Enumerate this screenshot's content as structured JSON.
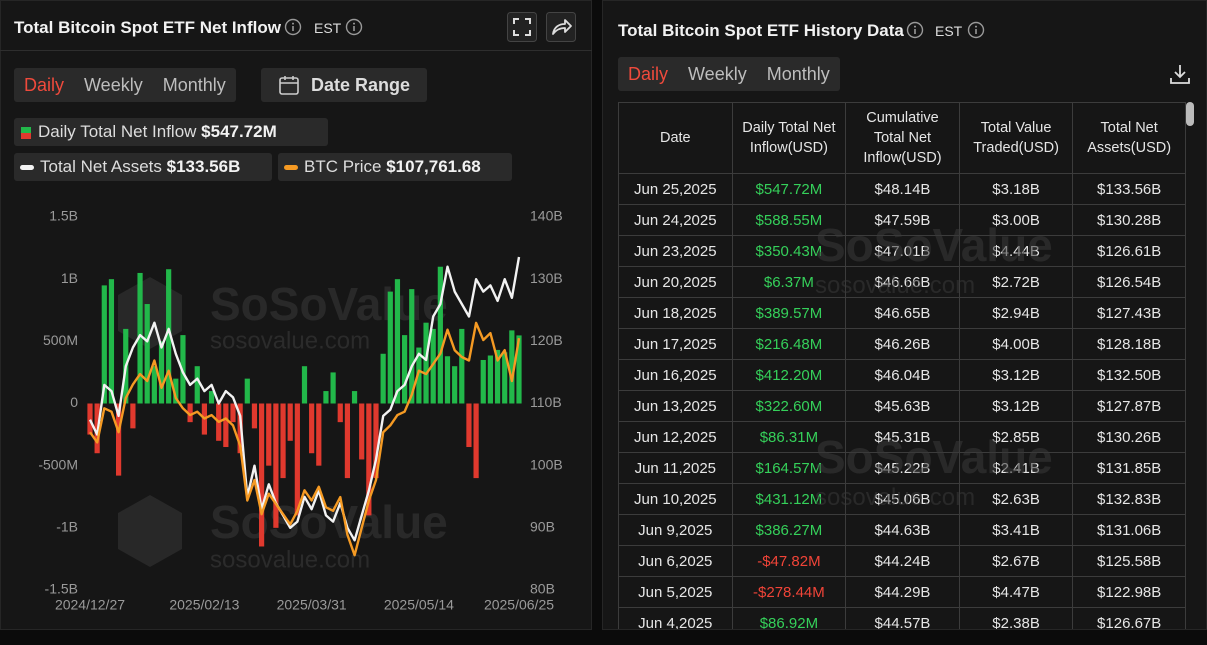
{
  "left_panel": {
    "title": "Total Bitcoin Spot ETF Net Inflow",
    "timezone": "EST",
    "tabs": [
      "Daily",
      "Weekly",
      "Monthly"
    ],
    "date_range": "Date Range"
  },
  "right_panel": {
    "title": "Total Bitcoin Spot ETF History Data",
    "timezone": "EST",
    "tabs": [
      "Daily",
      "Weekly",
      "Monthly"
    ],
    "columns": [
      "Date",
      "Daily Total Net Inflow(USD)",
      "Cumulative Total Net Inflow(USD)",
      "Total Value Traded(USD)",
      "Total Net Assets(USD)"
    ],
    "rows": [
      [
        "Jun 25,2025",
        "$547.72M",
        "$48.14B",
        "$3.18B",
        "$133.56B"
      ],
      [
        "Jun 24,2025",
        "$588.55M",
        "$47.59B",
        "$3.00B",
        "$130.28B"
      ],
      [
        "Jun 23,2025",
        "$350.43M",
        "$47.01B",
        "$4.44B",
        "$126.61B"
      ],
      [
        "Jun 20,2025",
        "$6.37M",
        "$46.66B",
        "$2.72B",
        "$126.54B"
      ],
      [
        "Jun 18,2025",
        "$389.57M",
        "$46.65B",
        "$2.94B",
        "$127.43B"
      ],
      [
        "Jun 17,2025",
        "$216.48M",
        "$46.26B",
        "$4.00B",
        "$128.18B"
      ],
      [
        "Jun 16,2025",
        "$412.20M",
        "$46.04B",
        "$3.12B",
        "$132.50B"
      ],
      [
        "Jun 13,2025",
        "$322.60M",
        "$45.63B",
        "$3.12B",
        "$127.87B"
      ],
      [
        "Jun 12,2025",
        "$86.31M",
        "$45.31B",
        "$2.85B",
        "$130.26B"
      ],
      [
        "Jun 11,2025",
        "$164.57M",
        "$45.22B",
        "$2.41B",
        "$131.85B"
      ],
      [
        "Jun 10,2025",
        "$431.12M",
        "$45.06B",
        "$2.63B",
        "$132.83B"
      ],
      [
        "Jun 9,2025",
        "$386.27M",
        "$44.63B",
        "$3.41B",
        "$131.06B"
      ],
      [
        "Jun 6,2025",
        "-$47.82M",
        "$44.24B",
        "$2.67B",
        "$125.58B"
      ],
      [
        "Jun 5,2025",
        "-$278.44M",
        "$44.29B",
        "$4.47B",
        "$122.98B"
      ],
      [
        "Jun 4,2025",
        "$86.92M",
        "$44.57B",
        "$2.38B",
        "$126.67B"
      ]
    ]
  },
  "watermark": {
    "brand": "SoSoValue",
    "site": "sosovalue.com"
  },
  "chart_data": {
    "type": "bar",
    "categories": [
      "2024/12/27",
      null,
      null,
      null,
      null,
      null,
      null,
      null,
      null,
      null,
      null,
      null,
      null,
      null,
      null,
      null,
      "2025/02/13",
      null,
      null,
      null,
      null,
      null,
      null,
      null,
      null,
      null,
      null,
      null,
      null,
      null,
      null,
      "2025/03/31",
      null,
      null,
      null,
      null,
      null,
      null,
      null,
      null,
      null,
      null,
      null,
      null,
      null,
      null,
      "2025/05/14",
      null,
      null,
      null,
      null,
      null,
      null,
      null,
      null,
      null,
      null,
      null,
      null,
      null,
      "2025/06/25"
    ],
    "series": [
      {
        "name": "Daily Total Net Inflow",
        "legend_value": "$547.72M",
        "color": "#22b84a",
        "negative_color": "#e0392e",
        "values": [
          -250,
          -400,
          950,
          1000,
          -580,
          600,
          -200,
          1050,
          800,
          300,
          500,
          1080,
          200,
          550,
          -150,
          300,
          -250,
          100,
          -300,
          -350,
          -150,
          -400,
          200,
          -200,
          -1150,
          -500,
          -1000,
          -600,
          -300,
          -900,
          300,
          -400,
          -500,
          100,
          250,
          -150,
          -600,
          100,
          -450,
          -900,
          -600,
          400,
          900,
          1000,
          550,
          920,
          450,
          650,
          600,
          1100,
          380,
          300,
          600,
          -350,
          -600,
          350,
          386,
          431,
          412,
          588,
          547.72
        ]
      },
      {
        "name": "Total Net Assets",
        "legend_value": "$133.56B",
        "color": "#f2f2f2",
        "axis": "y2",
        "values": [
          107.4,
          105,
          113,
          112,
          108,
          116,
          119,
          121,
          120,
          123,
          119,
          122,
          118,
          115,
          113,
          114,
          112,
          113,
          110,
          112,
          111,
          108,
          95,
          100,
          93,
          97,
          94,
          92,
          90,
          91,
          95,
          93,
          96,
          92,
          91,
          94,
          90,
          88,
          92,
          96,
          101,
          108,
          109,
          112,
          113,
          116,
          118,
          117,
          124,
          126,
          132,
          128,
          126,
          124,
          130,
          128,
          129,
          126.5,
          130,
          127,
          133.56
        ]
      },
      {
        "name": "BTC Price",
        "legend_value": "$107,761.68",
        "color": "#f59a23",
        "axis": "y3",
        "values": [
          94000,
          92500,
          97500,
          97000,
          94000,
          99000,
          101000,
          102500,
          101500,
          104500,
          100500,
          103000,
          99000,
          97500,
          96500,
          97000,
          96000,
          96500,
          95500,
          96000,
          95000,
          92000,
          84000,
          87000,
          82000,
          85000,
          83500,
          82000,
          80500,
          82500,
          85500,
          84000,
          86000,
          83000,
          82500,
          84500,
          79000,
          76000,
          80000,
          84000,
          87000,
          94000,
          95000,
          96500,
          97000,
          99500,
          103000,
          102500,
          104000,
          105500,
          109000,
          106000,
          105000,
          104500,
          110000,
          107500,
          108500,
          104500,
          106000,
          101500,
          107761.68
        ]
      }
    ],
    "ylim": [
      -1500,
      1500
    ],
    "yticks": [
      {
        "value": -1500,
        "label": "-1.5B"
      },
      {
        "value": -1000,
        "label": "-1B"
      },
      {
        "value": -500,
        "label": "-500M"
      },
      0,
      {
        "value": 500,
        "label": "500M"
      },
      {
        "value": 1000,
        "label": "1B"
      },
      {
        "value": 1500,
        "label": "1.5B"
      }
    ],
    "y2lim": [
      80,
      140
    ],
    "y2ticks": [
      {
        "value": 80,
        "label": "80B"
      },
      {
        "value": 90,
        "label": "90B"
      },
      {
        "value": 100,
        "label": "100B"
      },
      {
        "value": 110,
        "label": "110B"
      },
      {
        "value": 120,
        "label": "120B"
      },
      {
        "value": 130,
        "label": "130B"
      },
      {
        "value": 140,
        "label": "140B"
      }
    ],
    "y3lim": [
      70900,
      125500
    ],
    "grid": false
  }
}
